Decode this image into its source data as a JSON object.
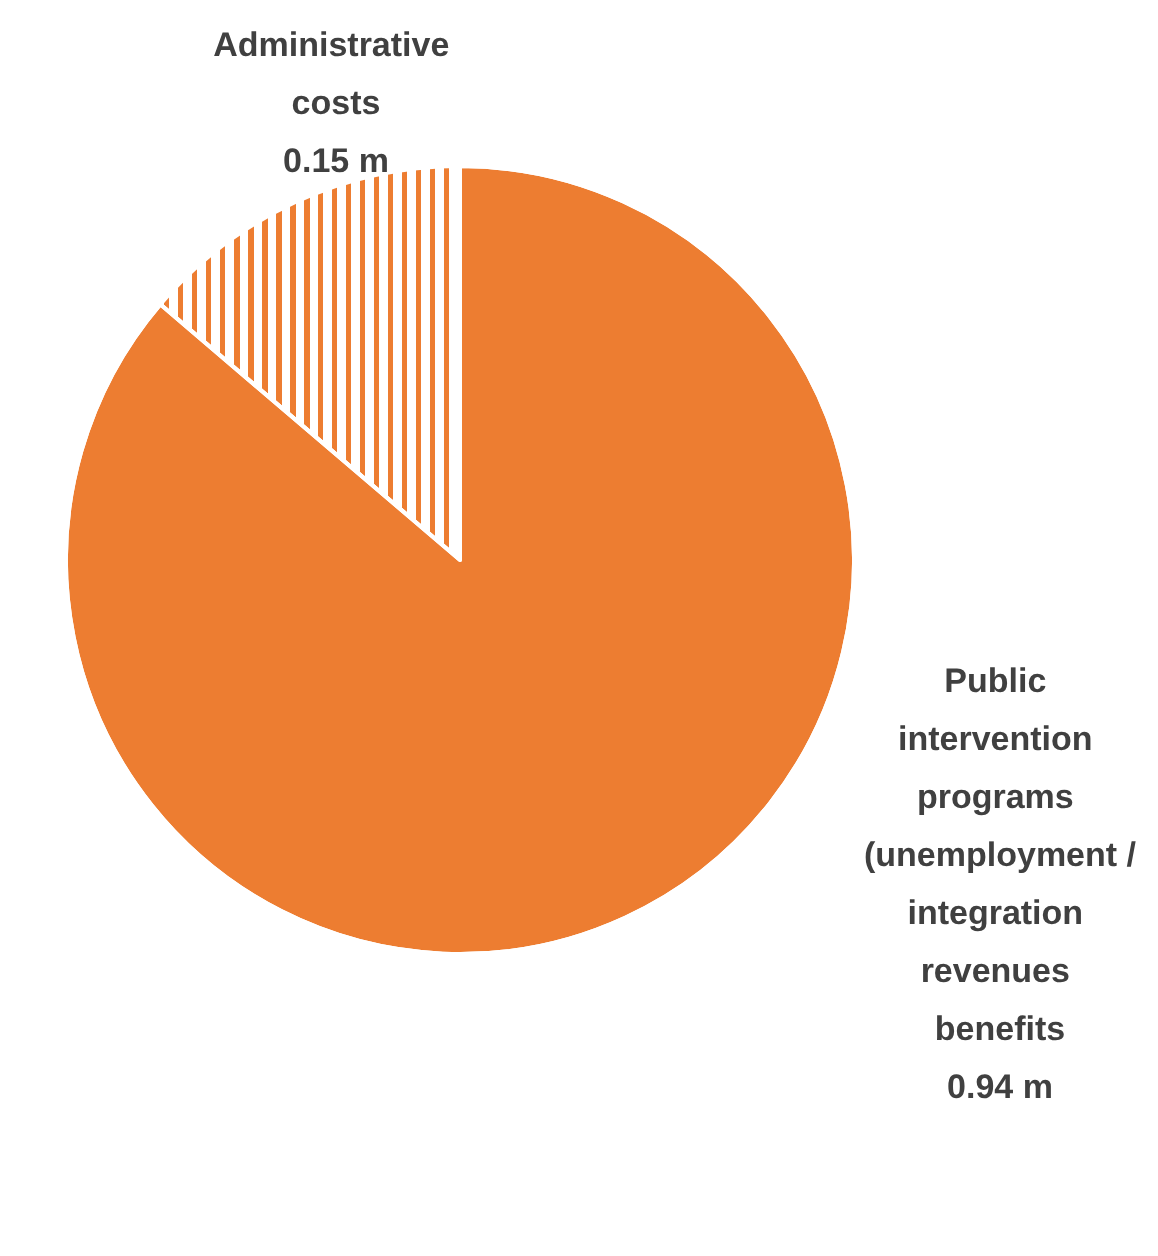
{
  "chart_data": {
    "type": "pie",
    "categories": [
      "Administrative costs",
      "Public intervention programs (unemployment /integration revenues benefits"
    ],
    "values": [
      0.15,
      0.94
    ],
    "value_labels": [
      "0.15 m",
      "0.94 m"
    ],
    "colors": [
      "#ffffff",
      "#ed7d31"
    ],
    "legend": false
  }
}
